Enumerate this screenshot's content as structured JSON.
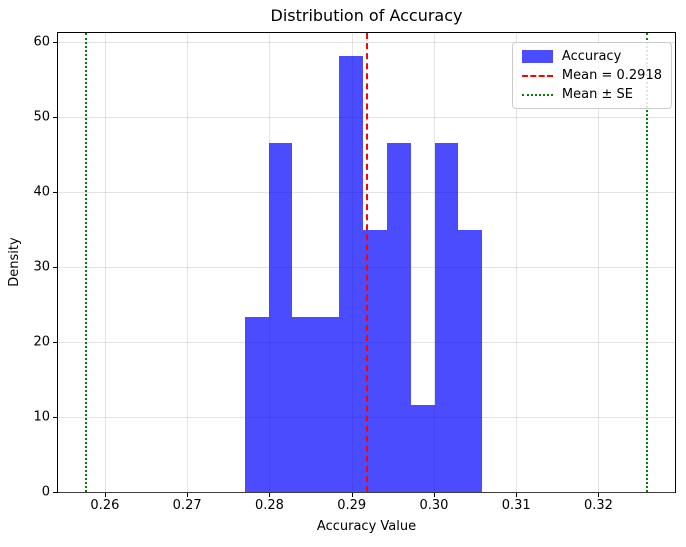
{
  "chart_data": {
    "type": "bar",
    "subtype": "histogram-density",
    "title": "Distribution of Accuracy",
    "xlabel": "Accuracy Value",
    "ylabel": "Density",
    "bar_color": "rgba(0,0,255,0.7)",
    "bin_edges": [
      0.277,
      0.2799,
      0.2828,
      0.2857,
      0.2885,
      0.2914,
      0.2943,
      0.2972,
      0.3001,
      0.3029,
      0.3058
    ],
    "densities": [
      23.3,
      46.5,
      23.3,
      23.3,
      58.1,
      34.9,
      46.5,
      11.6,
      46.5,
      34.9
    ],
    "mean_line": {
      "value": 0.2918,
      "color": "#ff0000",
      "style": "dashed"
    },
    "se_lines": {
      "values": [
        0.2577,
        0.3259
      ],
      "color": "#008000",
      "style": "dotted"
    },
    "xlim": [
      0.2543,
      0.3293
    ],
    "ylim": [
      0,
      61.2
    ],
    "x_ticks": [
      0.26,
      0.27,
      0.28,
      0.29,
      0.3,
      0.31,
      0.32
    ],
    "x_tick_labels": [
      "0.26",
      "0.27",
      "0.28",
      "0.29",
      "0.30",
      "0.31",
      "0.32"
    ],
    "y_ticks": [
      0,
      10,
      20,
      30,
      40,
      50,
      60
    ],
    "y_tick_labels": [
      "0",
      "10",
      "20",
      "30",
      "40",
      "50",
      "60"
    ],
    "grid": true,
    "legend": {
      "position": "upper right",
      "items": [
        {
          "id": "accuracy",
          "label": "Accuracy",
          "swatch": "patch",
          "color": "rgba(0,0,255,0.7)"
        },
        {
          "id": "mean",
          "label": "Mean = 0.2918",
          "swatch": "dashed-line",
          "color": "#ff0000"
        },
        {
          "id": "se",
          "label": "Mean ± SE",
          "swatch": "dotted-line",
          "color": "#008000"
        }
      ]
    }
  }
}
